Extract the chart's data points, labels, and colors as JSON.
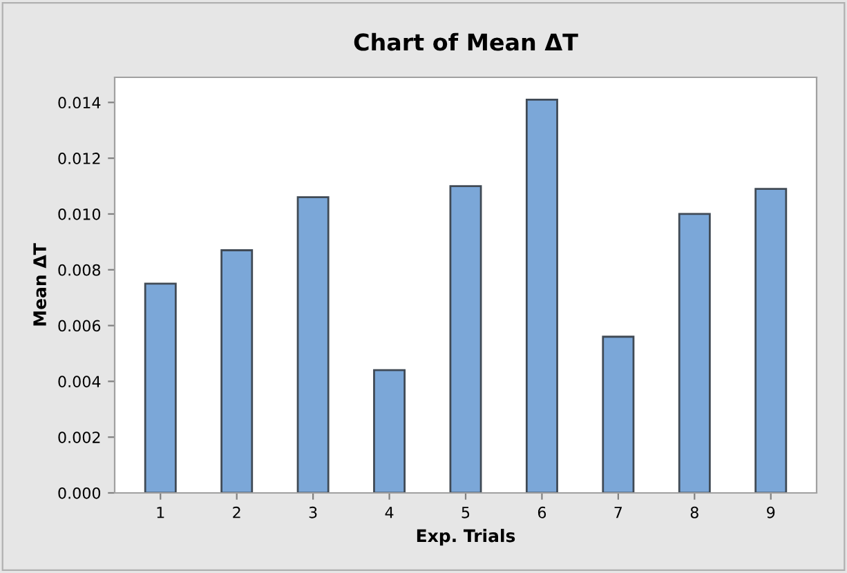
{
  "chart_data": {
    "type": "bar",
    "title": "Chart of Mean ΔT",
    "xlabel": "Exp. Trials",
    "ylabel": "Mean ΔT",
    "categories": [
      "1",
      "2",
      "3",
      "4",
      "5",
      "6",
      "7",
      "8",
      "9"
    ],
    "values": [
      0.0075,
      0.0087,
      0.0106,
      0.0044,
      0.011,
      0.0141,
      0.0056,
      0.01,
      0.0109
    ],
    "color": "#7ba7d8",
    "ylim": [
      0,
      0.0149
    ],
    "yticks": [
      {
        "value": 0,
        "label": "0.000"
      },
      {
        "value": 0.002,
        "label": "0.002"
      },
      {
        "value": 0.004,
        "label": "0.004"
      },
      {
        "value": 0.006,
        "label": "0.006"
      },
      {
        "value": 0.008,
        "label": "0.008"
      },
      {
        "value": 0.01,
        "label": "0.010"
      },
      {
        "value": 0.012,
        "label": "0.012"
      },
      {
        "value": 0.014,
        "label": "0.014"
      }
    ],
    "grid": false
  }
}
